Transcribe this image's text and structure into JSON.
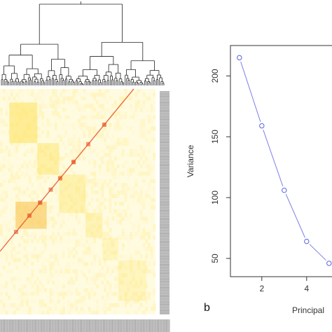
{
  "figure": {
    "panel_b_label": "b"
  },
  "colors": {
    "heat_low": "#fffbe0",
    "heat_mid": "#fde25a",
    "heat_high": "#e8552a",
    "dendrogram": "#222222",
    "scree_line": "#7a7fe8",
    "scree_point": "#5a62e0",
    "axis": "#333333",
    "sidebar": "#8a8a8a"
  },
  "chart_data": [
    {
      "type": "heatmap",
      "title": "",
      "dendrogram": true,
      "block_clusters": [
        {
          "start": 0.06,
          "end": 0.24,
          "intensity": 0.55
        },
        {
          "start": 0.24,
          "end": 0.38,
          "intensity": 0.45
        },
        {
          "start": 0.38,
          "end": 0.55,
          "intensity": 0.35
        },
        {
          "start": 0.55,
          "end": 0.66,
          "intensity": 0.3
        },
        {
          "start": 0.66,
          "end": 0.76,
          "intensity": 0.25
        },
        {
          "start": 0.76,
          "end": 0.94,
          "intensity": 0.25
        }
      ],
      "diagonal": true
    },
    {
      "type": "line",
      "title": "",
      "xlabel": "Principal",
      "ylabel": "Variance",
      "x": [
        1,
        2,
        3,
        4,
        5
      ],
      "y": [
        215,
        159,
        106,
        64,
        46
      ],
      "xticks": [
        2,
        4
      ],
      "yticks": [
        50,
        100,
        150,
        200
      ],
      "xlim": [
        0.6,
        5.6
      ],
      "ylim": [
        35,
        225
      ],
      "grid": false
    }
  ]
}
